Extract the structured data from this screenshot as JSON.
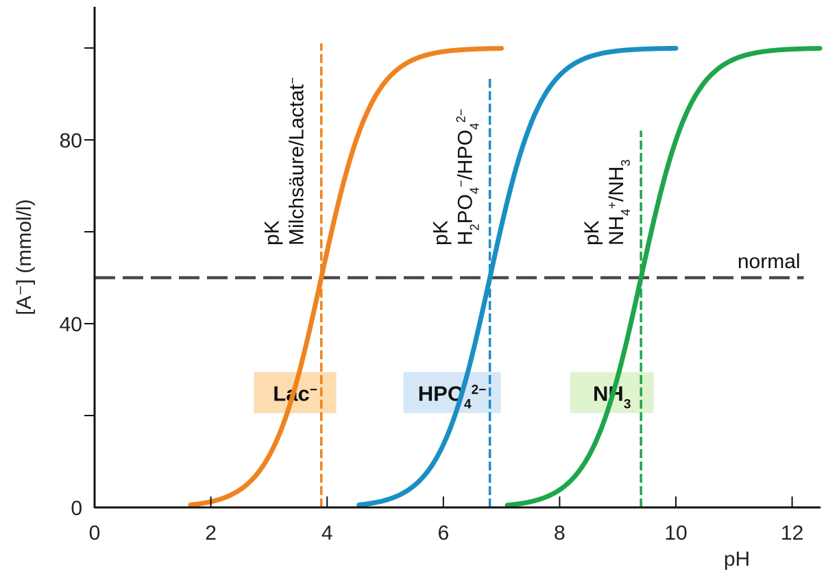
{
  "chart_data": {
    "type": "line",
    "title": "",
    "xlabel": "pH",
    "ylabel": "[A⁻] (mmol/l)",
    "xlim": [
      0,
      12.5
    ],
    "ylim": [
      0,
      105
    ],
    "x_ticks": [
      0,
      2,
      4,
      6,
      8,
      10,
      12
    ],
    "x_tick_labels": [
      "0",
      "2",
      "4",
      "6",
      "8",
      "10",
      "12"
    ],
    "y_ticks": [
      0,
      20,
      40,
      60,
      80,
      100
    ],
    "y_tick_labels": [
      "0",
      "",
      "40",
      "",
      "80",
      ""
    ],
    "grid": false,
    "total_concentration": 100,
    "series": [
      {
        "name": "Lac⁻",
        "pK": 3.9,
        "x_range": [
          1.65,
          7.0
        ],
        "color": "#ee8420",
        "label_parts": [
          {
            "t": "Lac"
          },
          {
            "t": "−",
            "sup": true
          }
        ],
        "box_color": "#fddcb0",
        "box_center": [
          3.45,
          25
        ]
      },
      {
        "name": "HPO₄²⁻",
        "pK": 6.8,
        "x_range": [
          4.55,
          10.0
        ],
        "color": "#1a8fc4",
        "label_parts": [
          {
            "t": "HPO"
          },
          {
            "t": "4",
            "sub": true
          },
          {
            "t": "2−",
            "sup": true
          }
        ],
        "box_color": "#d6e7f7",
        "box_center": [
          6.15,
          25
        ]
      },
      {
        "name": "NH₃",
        "pK": 9.4,
        "x_range": [
          7.1,
          12.5
        ],
        "color": "#1ea64a",
        "label_parts": [
          {
            "t": "NH"
          },
          {
            "t": "3",
            "sub": true
          }
        ],
        "box_color": "#e0f3cf",
        "box_center": [
          8.9,
          25
        ]
      }
    ],
    "reference_line": {
      "label": "normal",
      "y": 50,
      "x_range": [
        0,
        12.2
      ],
      "color": "#4a4a4a"
    },
    "pk_lines": [
      {
        "x": 3.9,
        "y_top": 101,
        "color": "#ee8420",
        "line1": [
          {
            "t": "pK"
          }
        ],
        "line2": [
          {
            "t": "Milchsäure/Lactat"
          },
          {
            "t": "−",
            "sup": true
          }
        ]
      },
      {
        "x": 6.8,
        "y_top": 94,
        "color": "#1a8fc4",
        "line1": [
          {
            "t": "pK"
          }
        ],
        "line2": [
          {
            "t": "H"
          },
          {
            "t": "2",
            "sub": true
          },
          {
            "t": "PO"
          },
          {
            "t": "4",
            "sub": true
          },
          {
            "t": "−",
            "sup": true
          },
          {
            "t": "/HPO"
          },
          {
            "t": "4",
            "sub": true
          },
          {
            "t": "2−",
            "sup": true
          }
        ]
      },
      {
        "x": 9.4,
        "y_top": 82,
        "color": "#1ea64a",
        "line1": [
          {
            "t": "pK"
          }
        ],
        "line2": [
          {
            "t": "NH"
          },
          {
            "t": "4",
            "sub": true
          },
          {
            "t": "+",
            "sup": true
          },
          {
            "t": "/NH"
          },
          {
            "t": "3",
            "sub": true
          }
        ]
      }
    ]
  }
}
